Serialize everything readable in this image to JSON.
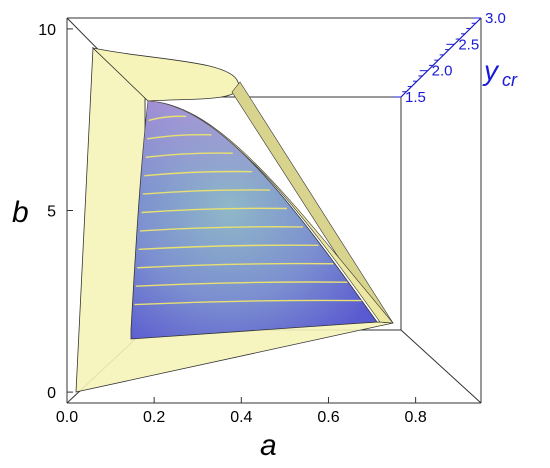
{
  "chart_data": {
    "type": "area",
    "xlabel": "a",
    "ylabel": "b",
    "zlabel": "y",
    "zlabel_sub": "cr",
    "xlim": [
      0.0,
      0.95
    ],
    "ylim": [
      -0.3,
      10.3
    ],
    "zlim": [
      1.5,
      3.0
    ],
    "x_ticks": [
      "0.0",
      "0.2",
      "0.4",
      "0.6",
      "0.8"
    ],
    "y_ticks": [
      "0",
      "5",
      "10"
    ],
    "z_ticks": [
      "1.5",
      "2.0",
      "2.5",
      "3.0"
    ],
    "outer_region_color": "#f6f4b8",
    "inner_surface_colors": [
      "#6a6ad8",
      "#8fb8c8",
      "#c0a8d8"
    ],
    "contour_color": "#e8e070",
    "outer_region": [
      [
        0.02,
        0.1
      ],
      [
        0.7,
        2.1
      ],
      [
        0.18,
        8.0
      ],
      [
        0.07,
        9.6
      ]
    ],
    "inner_surface": [
      [
        0.14,
        1.8
      ],
      [
        0.7,
        2.1
      ],
      [
        0.18,
        8.0
      ]
    ],
    "contour_count": 11
  }
}
